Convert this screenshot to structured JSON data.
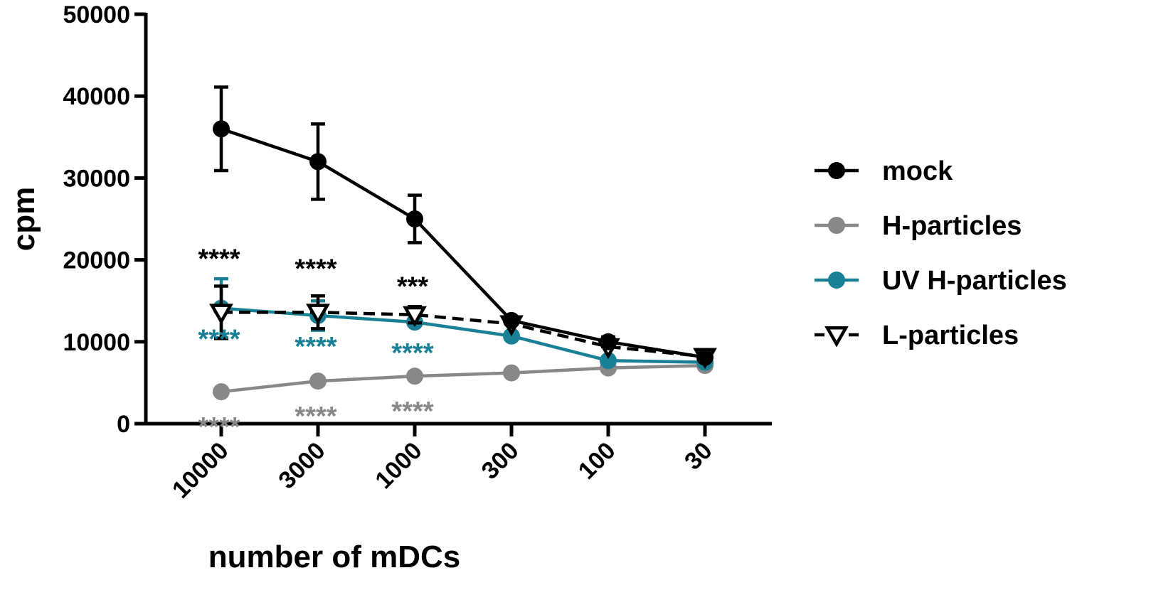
{
  "chart_data": {
    "type": "line",
    "title": "",
    "xlabel": "number of mDCs",
    "ylabel": "cpm",
    "ylim": [
      0,
      50000
    ],
    "yticks": [
      0,
      10000,
      20000,
      30000,
      40000,
      50000
    ],
    "categories": [
      "10000",
      "3000",
      "1000",
      "300",
      "100",
      "30"
    ],
    "legend_position": "right",
    "series": [
      {
        "name": "mock",
        "color": "#000000",
        "marker": "filled-circle",
        "line": "solid",
        "values": [
          36000,
          32000,
          25000,
          12600,
          10000,
          8100
        ],
        "error": [
          5100,
          4600,
          2900,
          0,
          600,
          0
        ]
      },
      {
        "name": "H-particles",
        "color": "#888888",
        "marker": "filled-circle",
        "line": "solid",
        "values": [
          3900,
          5200,
          5800,
          6200,
          6800,
          7100
        ],
        "error": [
          0,
          0,
          0,
          0,
          0,
          0
        ]
      },
      {
        "name": "UV H-particles",
        "color": "#1a8096",
        "marker": "filled-circle",
        "line": "solid",
        "values": [
          14100,
          13200,
          12400,
          10700,
          7700,
          7500
        ],
        "error": [
          3600,
          1800,
          0,
          0,
          0,
          0
        ]
      },
      {
        "name": "L-particles",
        "color": "#000000",
        "marker": "open-triangle-down",
        "line": "dashed",
        "values": [
          13600,
          13600,
          13300,
          12200,
          9400,
          8200
        ],
        "error": [
          3200,
          2000,
          1000,
          0,
          0,
          0
        ]
      }
    ],
    "annotations": [
      {
        "series": "L-particles",
        "category": "10000",
        "text": "****",
        "color": "#000000"
      },
      {
        "series": "L-particles",
        "category": "3000",
        "text": "****",
        "color": "#000000"
      },
      {
        "series": "L-particles",
        "category": "1000",
        "text": "***",
        "color": "#000000"
      },
      {
        "series": "UV H-particles",
        "category": "10000",
        "text": "****",
        "color": "#1a8096"
      },
      {
        "series": "UV H-particles",
        "category": "3000",
        "text": "****",
        "color": "#1a8096"
      },
      {
        "series": "UV H-particles",
        "category": "1000",
        "text": "****",
        "color": "#1a8096"
      },
      {
        "series": "H-particles",
        "category": "10000",
        "text": "****",
        "color": "#888888"
      },
      {
        "series": "H-particles",
        "category": "3000",
        "text": "****",
        "color": "#888888"
      },
      {
        "series": "H-particles",
        "category": "1000",
        "text": "****",
        "color": "#888888"
      }
    ]
  }
}
